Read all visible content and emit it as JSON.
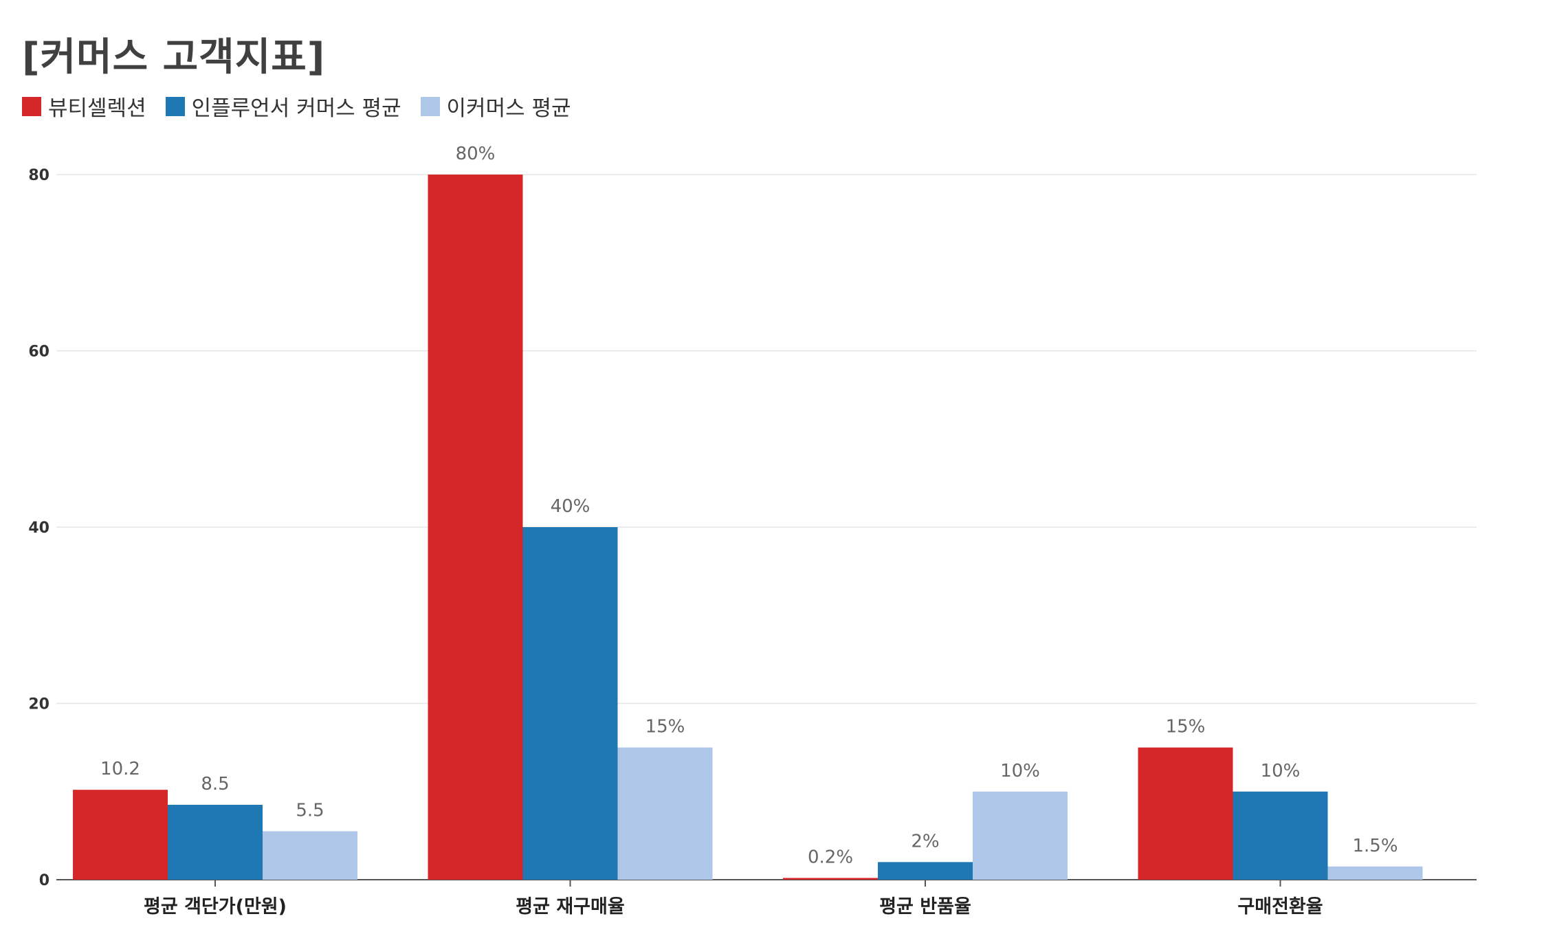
{
  "chart_data": {
    "type": "bar",
    "title": "[커머스 고객지표]",
    "categories": [
      "평균 객단가(만원)",
      "평균 재구매율",
      "평균 반품율",
      "구매전환율"
    ],
    "series": [
      {
        "name": "뷰티셀렉션",
        "color": "#d62728",
        "values": [
          10.2,
          80,
          0.2,
          15
        ],
        "labels": [
          "10.2",
          "80%",
          "0.2%",
          "15%"
        ]
      },
      {
        "name": "인플루언서 커머스 평균",
        "color": "#1f77b4",
        "values": [
          8.5,
          40,
          2,
          10
        ],
        "labels": [
          "8.5",
          "40%",
          "2%",
          "10%"
        ]
      },
      {
        "name": "이커머스 평균",
        "color": "#aec7e8",
        "values": [
          5.5,
          15,
          10,
          1.5
        ],
        "labels": [
          "5.5",
          "15%",
          "10%",
          "1.5%"
        ]
      }
    ],
    "ylim": [
      0,
      80
    ],
    "yticks": [
      0,
      20,
      40,
      60,
      80
    ],
    "xlabel": "",
    "ylabel": "",
    "grid": true,
    "legend_position": "top-left"
  }
}
